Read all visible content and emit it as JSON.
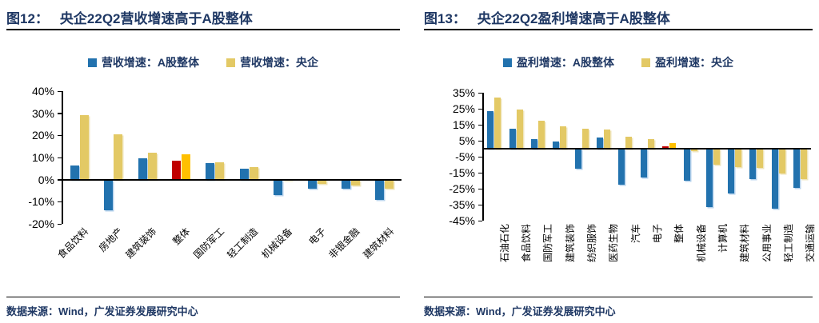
{
  "source_note": "数据来源：Wind，广发证券发展研究中心",
  "colors": {
    "heading_navy": "#1F3864",
    "axis_black": "#000000",
    "bar_blue": "#2272AE",
    "bar_khaki": "#E3C965",
    "highlight_red": "#C00000",
    "highlight_orange": "#FFC000"
  },
  "chart_data": [
    {
      "type": "bar",
      "figure_label": "图12：",
      "title": "央企22Q2营收增速高于A股整体",
      "legend_position": "top",
      "grid": false,
      "ylim": [
        -20,
        40
      ],
      "yticks": [
        40,
        30,
        20,
        10,
        0,
        -10,
        -20
      ],
      "ytick_suffix": "%",
      "x_label_rotation": 45,
      "categories": [
        "食品饮料",
        "房地产",
        "建筑装饰",
        "整体",
        "国防军工",
        "轻工制造",
        "机械设备",
        "电子",
        "非银金融",
        "建筑材料"
      ],
      "series": [
        {
          "name": "营收增速：A股整体",
          "color": "#2272AE",
          "values": [
            6.5,
            -14,
            9.5,
            8.5,
            7.5,
            5,
            -7,
            -4,
            -4,
            -9
          ]
        },
        {
          "name": "营收增速：央企",
          "color": "#E3C965",
          "values": [
            29,
            20.5,
            12,
            11.5,
            8,
            5.5,
            -0.5,
            -2,
            -2.5,
            -4
          ]
        }
      ],
      "highlight_category": "整体",
      "highlight_index": 3,
      "highlight_colors": [
        "#C00000",
        "#FFC000"
      ]
    },
    {
      "type": "bar",
      "figure_label": "图13：",
      "title": "央企22Q2盈利增速高于A股整体",
      "legend_position": "top",
      "grid": false,
      "ylim": [
        -45,
        35
      ],
      "yticks": [
        35,
        25,
        15,
        5,
        -5,
        -15,
        -25,
        -35,
        -45
      ],
      "ytick_suffix": "%",
      "x_label_rotation": 90,
      "categories": [
        "石油石化",
        "食品饮料",
        "国防军工",
        "建筑装饰",
        "纺织服饰",
        "医药生物",
        "汽车",
        "电子",
        "整体",
        "机械设备",
        "计算机",
        "建筑材料",
        "公用事业",
        "轻工制造",
        "交通运输"
      ],
      "series": [
        {
          "name": "盈利增速：A股整体",
          "color": "#2272AE",
          "values": [
            23.5,
            12.5,
            6,
            4.5,
            -12.5,
            7,
            -22.5,
            -18,
            1.5,
            -20,
            -36.5,
            -28,
            -19,
            -37.5,
            -24.5
          ]
        },
        {
          "name": "盈利增速：央企",
          "color": "#E3C965",
          "values": [
            32,
            24.5,
            17.5,
            14,
            12.5,
            12,
            7.5,
            6,
            3.5,
            -1.5,
            -10,
            -11.5,
            -12,
            -15.5,
            -19
          ]
        }
      ],
      "highlight_category": "整体",
      "highlight_index": 8,
      "highlight_colors": [
        "#C00000",
        "#FFC000"
      ]
    }
  ]
}
